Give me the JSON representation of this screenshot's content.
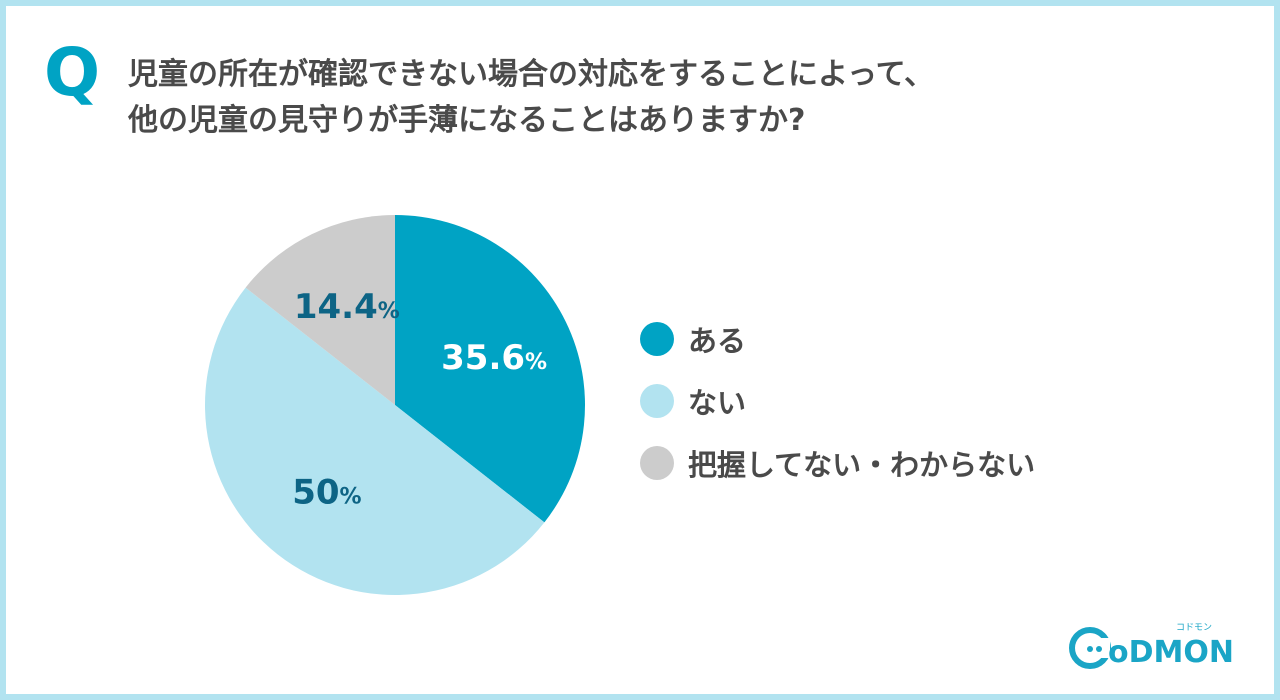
{
  "header": {
    "q_mark": "Q",
    "title_line1": "児童の所在が確認できない場合の対応をすることによって、",
    "title_line2": "他の児童の見守りが手薄になることはありますか?"
  },
  "chart_data": {
    "type": "pie",
    "title": "児童の所在が確認できない場合の対応をすることによって、他の児童の見守りが手薄になることはありますか?",
    "categories": [
      "ある",
      "ない",
      "把握してない・わからない"
    ],
    "values": [
      35.6,
      50,
      14.4
    ],
    "labels": [
      "35.6",
      "50",
      "14.4"
    ],
    "unit": "%",
    "colors": [
      "#00a3c4",
      "#b2e3f0",
      "#cccccc"
    ],
    "label_colors": [
      "#ffffff",
      "#0d6485",
      "#0d6485"
    ],
    "legend_position": "right"
  },
  "logo": {
    "text": "CODMON",
    "sub": "コドモン"
  }
}
